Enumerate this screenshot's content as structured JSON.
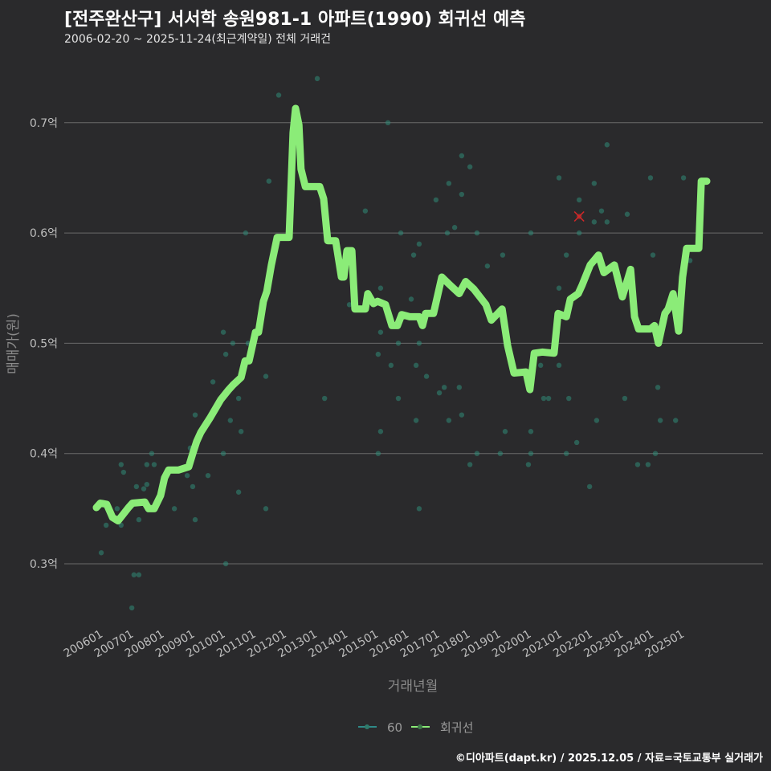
{
  "title": "[전주완산구] 서서학 송원981-1 아파트(1990) 회귀선 예측",
  "subtitle": "2006-02-20 ~ 2025-11-24(최근계약일) 전체 거래건",
  "footer": "©디아파트(dapt.kr) / 2025.12.05 / 자료=국토교통부 실거래가",
  "colors": {
    "background": "#2a2a2c",
    "points": "#2f8a78",
    "line": "#8bec78",
    "highlight": "#d62728",
    "grid": "#6a6a6a"
  },
  "chart_data": {
    "type": "scatter",
    "xlabel": "거래년월",
    "ylabel": "매매가(원)",
    "xlim": [
      2005.8,
      2026.0
    ],
    "ylim": [
      0.24,
      0.76
    ],
    "grid": true,
    "legend_position": "bottom",
    "x_ticks": [
      2006,
      2007,
      2008,
      2009,
      2010,
      2011,
      2012,
      2013,
      2014,
      2015,
      2016,
      2017,
      2018,
      2019,
      2020,
      2021,
      2022,
      2023,
      2024,
      2025
    ],
    "x_tick_labels": [
      "200601",
      "200701",
      "200801",
      "200901",
      "201001",
      "201101",
      "201201",
      "201301",
      "201401",
      "201501",
      "201601",
      "201701",
      "201801",
      "201901",
      "202001",
      "202101",
      "202201",
      "202301",
      "202401",
      "202501"
    ],
    "y_ticks": [
      0.3,
      0.4,
      0.5,
      0.6,
      0.7
    ],
    "y_tick_labels": [
      "0.3억",
      "0.4억",
      "0.5억",
      "0.6억",
      "0.7억"
    ],
    "legend": [
      "60",
      "회귀선"
    ],
    "series": [
      {
        "name": "60",
        "type": "scatter",
        "points": [
          [
            2013.14,
            0.74
          ],
          [
            2011.88,
            0.725
          ],
          [
            2015.45,
            0.7
          ],
          [
            2011.56,
            0.647
          ],
          [
            2014.71,
            0.62
          ],
          [
            2010.8,
            0.6
          ],
          [
            2015.87,
            0.6
          ],
          [
            2016.29,
            0.58
          ],
          [
            2015.21,
            0.55
          ],
          [
            2016.21,
            0.54
          ],
          [
            2014.19,
            0.535
          ],
          [
            2010.07,
            0.51
          ],
          [
            2015.21,
            0.51
          ],
          [
            2010.38,
            0.5
          ],
          [
            2010.88,
            0.5
          ],
          [
            2015.79,
            0.5
          ],
          [
            2010.15,
            0.49
          ],
          [
            2015.13,
            0.49
          ],
          [
            2015.55,
            0.48
          ],
          [
            2011.46,
            0.47
          ],
          [
            2009.73,
            0.465
          ],
          [
            2010.57,
            0.45
          ],
          [
            2013.38,
            0.45
          ],
          [
            2015.79,
            0.45
          ],
          [
            2009.15,
            0.435
          ],
          [
            2010.3,
            0.43
          ],
          [
            2016.37,
            0.43
          ],
          [
            2010.65,
            0.42
          ],
          [
            2015.21,
            0.42
          ],
          [
            2008.99,
            0.405
          ],
          [
            2007.73,
            0.4
          ],
          [
            2010.07,
            0.4
          ],
          [
            2015.13,
            0.4
          ],
          [
            2006.73,
            0.39
          ],
          [
            2007.57,
            0.39
          ],
          [
            2007.81,
            0.39
          ],
          [
            2006.81,
            0.383
          ],
          [
            2008.89,
            0.38
          ],
          [
            2009.57,
            0.38
          ],
          [
            2007.23,
            0.37
          ],
          [
            2007.57,
            0.372
          ],
          [
            2007.47,
            0.368
          ],
          [
            2009.07,
            0.37
          ],
          [
            2010.57,
            0.365
          ],
          [
            2008.47,
            0.35
          ],
          [
            2011.46,
            0.35
          ],
          [
            2006.6,
            0.35
          ],
          [
            2007.31,
            0.34
          ],
          [
            2009.15,
            0.34
          ],
          [
            2006.24,
            0.335
          ],
          [
            2006.73,
            0.335
          ],
          [
            2006.08,
            0.31
          ],
          [
            2010.15,
            0.3
          ],
          [
            2007.15,
            0.29
          ],
          [
            2007.31,
            0.29
          ],
          [
            2007.08,
            0.26
          ],
          [
            2022.61,
            0.68
          ],
          [
            2017.86,
            0.67
          ],
          [
            2018.13,
            0.66
          ],
          [
            2021.04,
            0.65
          ],
          [
            2024.03,
            0.65
          ],
          [
            2025.11,
            0.65
          ],
          [
            2017.44,
            0.645
          ],
          [
            2022.19,
            0.645
          ],
          [
            2017.02,
            0.63
          ],
          [
            2021.7,
            0.63
          ],
          [
            2017.86,
            0.635
          ],
          [
            2022.43,
            0.62
          ],
          [
            2023.27,
            0.617
          ],
          [
            2022.19,
            0.61
          ],
          [
            2022.61,
            0.61
          ],
          [
            2017.63,
            0.605
          ],
          [
            2017.39,
            0.6
          ],
          [
            2018.36,
            0.6
          ],
          [
            2020.12,
            0.6
          ],
          [
            2021.7,
            0.6
          ],
          [
            2016.47,
            0.59
          ],
          [
            2019.2,
            0.58
          ],
          [
            2021.28,
            0.58
          ],
          [
            2024.11,
            0.58
          ],
          [
            2025.32,
            0.575
          ],
          [
            2018.7,
            0.57
          ],
          [
            2021.04,
            0.55
          ],
          [
            2016.47,
            0.5
          ],
          [
            2016.37,
            0.48
          ],
          [
            2020.44,
            0.48
          ],
          [
            2021.04,
            0.48
          ],
          [
            2016.71,
            0.47
          ],
          [
            2017.29,
            0.46
          ],
          [
            2017.13,
            0.455
          ],
          [
            2017.78,
            0.46
          ],
          [
            2024.27,
            0.46
          ],
          [
            2020.54,
            0.45
          ],
          [
            2020.7,
            0.45
          ],
          [
            2021.36,
            0.45
          ],
          [
            2023.19,
            0.45
          ],
          [
            2017.44,
            0.43
          ],
          [
            2017.86,
            0.435
          ],
          [
            2022.27,
            0.43
          ],
          [
            2024.35,
            0.43
          ],
          [
            2024.85,
            0.43
          ],
          [
            2019.28,
            0.42
          ],
          [
            2020.12,
            0.42
          ],
          [
            2021.62,
            0.41
          ],
          [
            2018.36,
            0.4
          ],
          [
            2019.12,
            0.4
          ],
          [
            2020.12,
            0.4
          ],
          [
            2021.28,
            0.4
          ],
          [
            2024.19,
            0.4
          ],
          [
            2018.13,
            0.39
          ],
          [
            2020.04,
            0.39
          ],
          [
            2023.61,
            0.39
          ],
          [
            2023.95,
            0.39
          ],
          [
            2022.04,
            0.37
          ],
          [
            2016.47,
            0.35
          ]
        ]
      },
      {
        "name": "회귀선",
        "type": "line",
        "points": [
          [
            2005.92,
            0.351
          ],
          [
            2006.05,
            0.355
          ],
          [
            2006.26,
            0.354
          ],
          [
            2006.45,
            0.342
          ],
          [
            2006.63,
            0.339
          ],
          [
            2006.97,
            0.351
          ],
          [
            2007.1,
            0.355
          ],
          [
            2007.5,
            0.356
          ],
          [
            2007.63,
            0.35
          ],
          [
            2007.81,
            0.35
          ],
          [
            2008.02,
            0.362
          ],
          [
            2008.15,
            0.378
          ],
          [
            2008.28,
            0.385
          ],
          [
            2008.6,
            0.385
          ],
          [
            2008.94,
            0.388
          ],
          [
            2009.07,
            0.4
          ],
          [
            2009.2,
            0.411
          ],
          [
            2009.33,
            0.419
          ],
          [
            2009.65,
            0.433
          ],
          [
            2009.99,
            0.449
          ],
          [
            2010.25,
            0.458
          ],
          [
            2010.38,
            0.462
          ],
          [
            2010.65,
            0.469
          ],
          [
            2010.78,
            0.484
          ],
          [
            2010.91,
            0.484
          ],
          [
            2011.12,
            0.51
          ],
          [
            2011.22,
            0.51
          ],
          [
            2011.38,
            0.538
          ],
          [
            2011.49,
            0.547
          ],
          [
            2011.64,
            0.571
          ],
          [
            2011.83,
            0.596
          ],
          [
            2012.22,
            0.596
          ],
          [
            2012.35,
            0.691
          ],
          [
            2012.43,
            0.713
          ],
          [
            2012.54,
            0.698
          ],
          [
            2012.61,
            0.658
          ],
          [
            2012.75,
            0.642
          ],
          [
            2013.22,
            0.642
          ],
          [
            2013.35,
            0.631
          ],
          [
            2013.48,
            0.593
          ],
          [
            2013.74,
            0.593
          ],
          [
            2013.93,
            0.56
          ],
          [
            2014.01,
            0.56
          ],
          [
            2014.11,
            0.584
          ],
          [
            2014.27,
            0.584
          ],
          [
            2014.37,
            0.531
          ],
          [
            2014.71,
            0.531
          ],
          [
            2014.79,
            0.545
          ],
          [
            2014.98,
            0.536
          ],
          [
            2015.11,
            0.538
          ],
          [
            2015.37,
            0.535
          ],
          [
            2015.58,
            0.516
          ],
          [
            2015.76,
            0.516
          ],
          [
            2015.9,
            0.526
          ],
          [
            2016.16,
            0.524
          ],
          [
            2016.47,
            0.524
          ],
          [
            2016.58,
            0.516
          ],
          [
            2016.68,
            0.527
          ],
          [
            2016.94,
            0.527
          ],
          [
            2017.21,
            0.56
          ],
          [
            2017.47,
            0.553
          ],
          [
            2017.78,
            0.545
          ],
          [
            2017.99,
            0.556
          ],
          [
            2018.26,
            0.549
          ],
          [
            2018.65,
            0.535
          ],
          [
            2018.83,
            0.521
          ],
          [
            2019.18,
            0.531
          ],
          [
            2019.36,
            0.498
          ],
          [
            2019.57,
            0.473
          ],
          [
            2019.96,
            0.474
          ],
          [
            2020.09,
            0.458
          ],
          [
            2020.23,
            0.491
          ],
          [
            2020.49,
            0.492
          ],
          [
            2020.88,
            0.491
          ],
          [
            2021.01,
            0.527
          ],
          [
            2021.28,
            0.524
          ],
          [
            2021.41,
            0.54
          ],
          [
            2021.67,
            0.545
          ],
          [
            2021.8,
            0.553
          ],
          [
            2022.06,
            0.571
          ],
          [
            2022.33,
            0.58
          ],
          [
            2022.51,
            0.564
          ],
          [
            2022.85,
            0.571
          ],
          [
            2023.11,
            0.542
          ],
          [
            2023.38,
            0.567
          ],
          [
            2023.51,
            0.524
          ],
          [
            2023.64,
            0.513
          ],
          [
            2024.03,
            0.513
          ],
          [
            2024.16,
            0.516
          ],
          [
            2024.29,
            0.5
          ],
          [
            2024.5,
            0.527
          ],
          [
            2024.61,
            0.531
          ],
          [
            2024.77,
            0.545
          ],
          [
            2024.95,
            0.511
          ],
          [
            2025.08,
            0.56
          ],
          [
            2025.21,
            0.586
          ],
          [
            2025.61,
            0.586
          ],
          [
            2025.69,
            0.647
          ],
          [
            2025.87,
            0.647
          ]
        ]
      }
    ],
    "highlight_point": [
      2021.7,
      0.615
    ]
  }
}
